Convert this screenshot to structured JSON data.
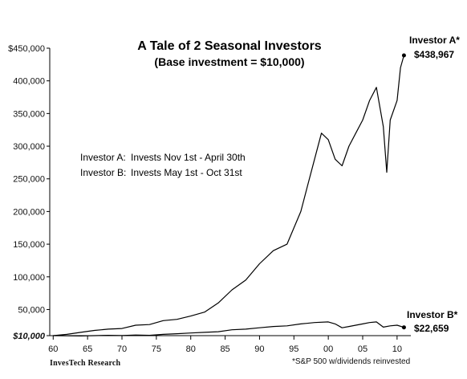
{
  "chart_data": {
    "type": "line",
    "title": "A Tale of 2 Seasonal Investors",
    "subtitle": "(Base investment = $10,000)",
    "xlabel": "",
    "ylabel": "",
    "xlim": [
      1959.5,
      2012
    ],
    "ylim": [
      10000,
      450000
    ],
    "x_ticks": [
      1960,
      1965,
      1970,
      1975,
      1980,
      1985,
      1990,
      1995,
      2000,
      2005,
      2010
    ],
    "x_tick_labels": [
      "60",
      "65",
      "70",
      "75",
      "80",
      "85",
      "90",
      "95",
      "00",
      "05",
      "10"
    ],
    "y_ticks": [
      10000,
      50000,
      100000,
      150000,
      200000,
      250000,
      300000,
      350000,
      400000,
      450000
    ],
    "y_tick_labels": [
      "$10,000",
      "50,000",
      "100,000",
      "150,000",
      "200,000",
      "250,000",
      "300,000",
      "350,000",
      "400,000",
      "$450,000"
    ],
    "grid": false,
    "series": [
      {
        "name": "Investor A*",
        "end_label": "$438,967",
        "description": "Invests Nov 1st - April 30th",
        "x": [
          1960,
          1962,
          1964,
          1966,
          1968,
          1970,
          1972,
          1974,
          1976,
          1978,
          1980,
          1982,
          1984,
          1986,
          1988,
          1990,
          1992,
          1994,
          1996,
          1997,
          1998,
          1999,
          2000,
          2001,
          2002,
          2003,
          2004,
          2005,
          2006,
          2007,
          2008,
          2008.5,
          2009,
          2010,
          2010.5,
          2011
        ],
        "values": [
          10000,
          12000,
          15000,
          18000,
          20000,
          21000,
          26000,
          27000,
          33000,
          35000,
          40000,
          46000,
          60000,
          80000,
          95000,
          120000,
          140000,
          150000,
          200000,
          240000,
          280000,
          320000,
          310000,
          280000,
          270000,
          300000,
          320000,
          340000,
          370000,
          390000,
          330000,
          260000,
          340000,
          370000,
          420000,
          438967
        ]
      },
      {
        "name": "Investor B*",
        "end_label": "$22,659",
        "description": "Invests May 1st - Oct 31st",
        "x": [
          1960,
          1962,
          1964,
          1966,
          1968,
          1970,
          1972,
          1974,
          1976,
          1978,
          1980,
          1982,
          1984,
          1986,
          1988,
          1990,
          1992,
          1994,
          1996,
          1998,
          2000,
          2001,
          2002,
          2003,
          2004,
          2005,
          2006,
          2007,
          2008,
          2009,
          2010,
          2011
        ],
        "values": [
          10000,
          9800,
          9500,
          10000,
          10500,
          10200,
          11000,
          10500,
          12000,
          13000,
          14000,
          15000,
          16000,
          19000,
          20000,
          22000,
          24000,
          25000,
          28000,
          30000,
          31000,
          28000,
          22000,
          24000,
          26000,
          28000,
          30000,
          31000,
          23000,
          25000,
          26000,
          22659
        ]
      }
    ],
    "legend_lines": [
      {
        "name": "Investor A:",
        "text": "Invests Nov 1st - April 30th"
      },
      {
        "name": "Investor B:",
        "text": "Invests May 1st - Oct 31st"
      }
    ],
    "source": "InvesTech Research",
    "footnote": "*S&P 500 w/dividends reinvested"
  }
}
